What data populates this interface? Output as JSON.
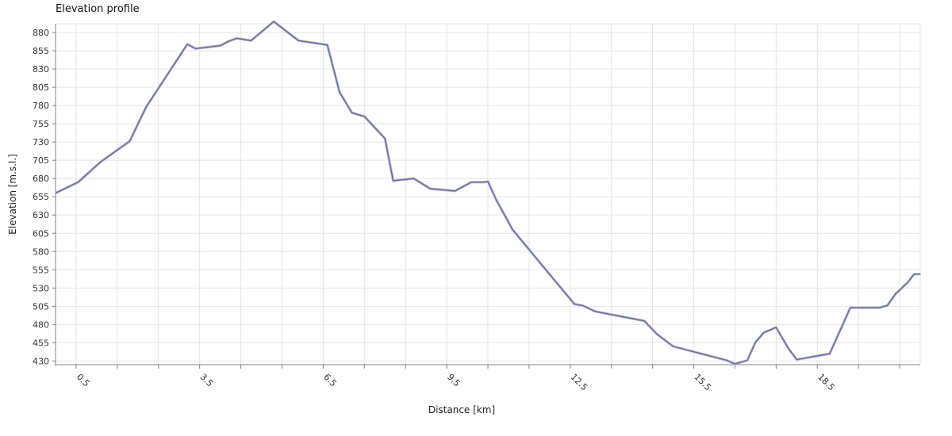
{
  "chart_data": {
    "type": "line",
    "title": "Elevation profile",
    "xlabel": "Distance [km]",
    "ylabel": "Elevation [m.s.l.]",
    "xlim": [
      0,
      21
    ],
    "ylim": [
      425,
      892
    ],
    "x_ticks": [
      0.5,
      3.5,
      6.5,
      9.5,
      12.5,
      15.5,
      18.5
    ],
    "x_minor_ticks": [
      0.5,
      1.5,
      2.5,
      3.5,
      4.5,
      5.5,
      6.5,
      7.5,
      8.5,
      9.5,
      10.5,
      11.5,
      12.5,
      13.5,
      14.5,
      15.5,
      16.5,
      17.5,
      18.5,
      19.5,
      20.5
    ],
    "y_ticks": [
      430,
      455,
      480,
      505,
      530,
      555,
      580,
      605,
      630,
      655,
      680,
      705,
      730,
      755,
      780,
      805,
      830,
      855,
      880
    ],
    "grid": true,
    "line_color": "#6a6a9a",
    "series": [
      {
        "x": [
          0.0,
          0.55,
          1.1,
          1.8,
          2.2,
          3.2,
          3.4,
          4.0,
          4.2,
          4.4,
          4.75,
          5.3,
          5.9,
          6.6,
          6.9,
          7.2,
          7.5,
          8.0,
          8.2,
          8.7,
          8.9,
          9.1,
          9.5,
          9.7,
          10.1,
          10.4,
          10.5,
          10.7,
          11.1,
          12.6,
          12.8,
          13.1,
          14.3,
          14.6,
          15.0,
          16.3,
          16.5,
          16.8,
          17.0,
          17.2,
          17.5,
          17.8,
          18.0,
          18.8,
          19.3,
          20.0,
          20.2,
          20.4,
          20.7,
          20.85,
          21.0
        ],
        "y": [
          660,
          675,
          703,
          731,
          778,
          864,
          858,
          862,
          868,
          872,
          869,
          895,
          869,
          863,
          798,
          770,
          765,
          735,
          677,
          680,
          673,
          666,
          664,
          663,
          675,
          675,
          676,
          651,
          610,
          508,
          506,
          498,
          485,
          467,
          450,
          431,
          426,
          431,
          456,
          469,
          476,
          447,
          432,
          440,
          503,
          503,
          506,
          522,
          538,
          549,
          549
        ]
      }
    ]
  }
}
